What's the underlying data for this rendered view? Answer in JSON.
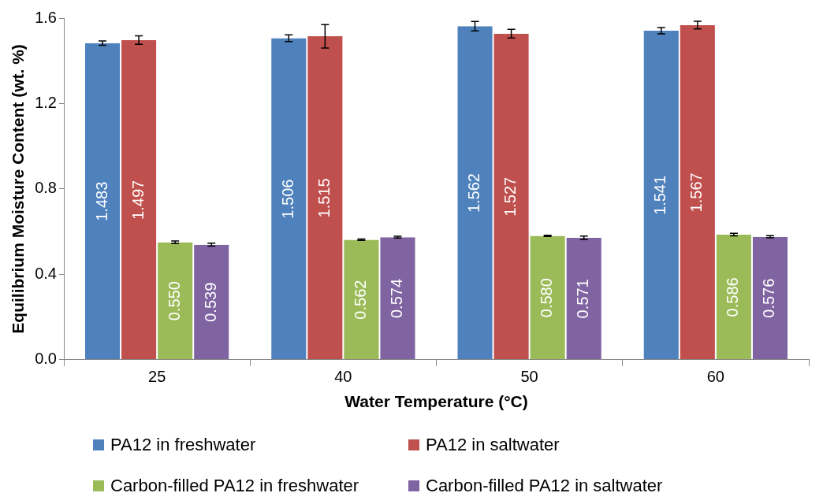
{
  "chart_data": {
    "type": "bar",
    "xlabel": "Water Temperature (°C)",
    "ylabel": "Equilibrium Moisture Content (wt. %)",
    "categories": [
      "25",
      "40",
      "50",
      "60"
    ],
    "ylim": [
      0,
      1.6
    ],
    "yticks": [
      {
        "value": 0,
        "label": "0.0"
      },
      {
        "value": 0.4,
        "label": "0.4"
      },
      {
        "value": 0.8,
        "label": "0.8"
      },
      {
        "value": 1.2,
        "label": "1.2"
      },
      {
        "value": 1.6,
        "label": "1.6"
      }
    ],
    "grid": false,
    "legend": "bottom",
    "series": [
      {
        "name": "PA12 in freshwater",
        "color": "#4f81bd",
        "values": [
          1.483,
          1.506,
          1.562,
          1.541
        ],
        "value_labels": [
          "1.483",
          "1.506",
          "1.562",
          "1.541"
        ],
        "errors": [
          0.01,
          0.016,
          0.022,
          0.015
        ]
      },
      {
        "name": "PA12 in saltwater",
        "color": "#c0504d",
        "values": [
          1.497,
          1.515,
          1.527,
          1.567
        ],
        "value_labels": [
          "1.497",
          "1.515",
          "1.527",
          "1.567"
        ],
        "errors": [
          0.02,
          0.055,
          0.02,
          0.018
        ]
      },
      {
        "name": "Carbon-filled PA12 in freshwater",
        "color": "#9bbb59",
        "values": [
          0.55,
          0.562,
          0.58,
          0.586
        ],
        "value_labels": [
          "0.550",
          "0.562",
          "0.580",
          "0.586"
        ],
        "errors": [
          0.006,
          0.003,
          0.003,
          0.006
        ]
      },
      {
        "name": "Carbon-filled PA12 in saltwater",
        "color": "#8064a2",
        "values": [
          0.539,
          0.574,
          0.571,
          0.576
        ],
        "value_labels": [
          "0.539",
          "0.574",
          "0.571",
          "0.576"
        ],
        "errors": [
          0.007,
          0.004,
          0.008,
          0.005
        ]
      }
    ]
  }
}
